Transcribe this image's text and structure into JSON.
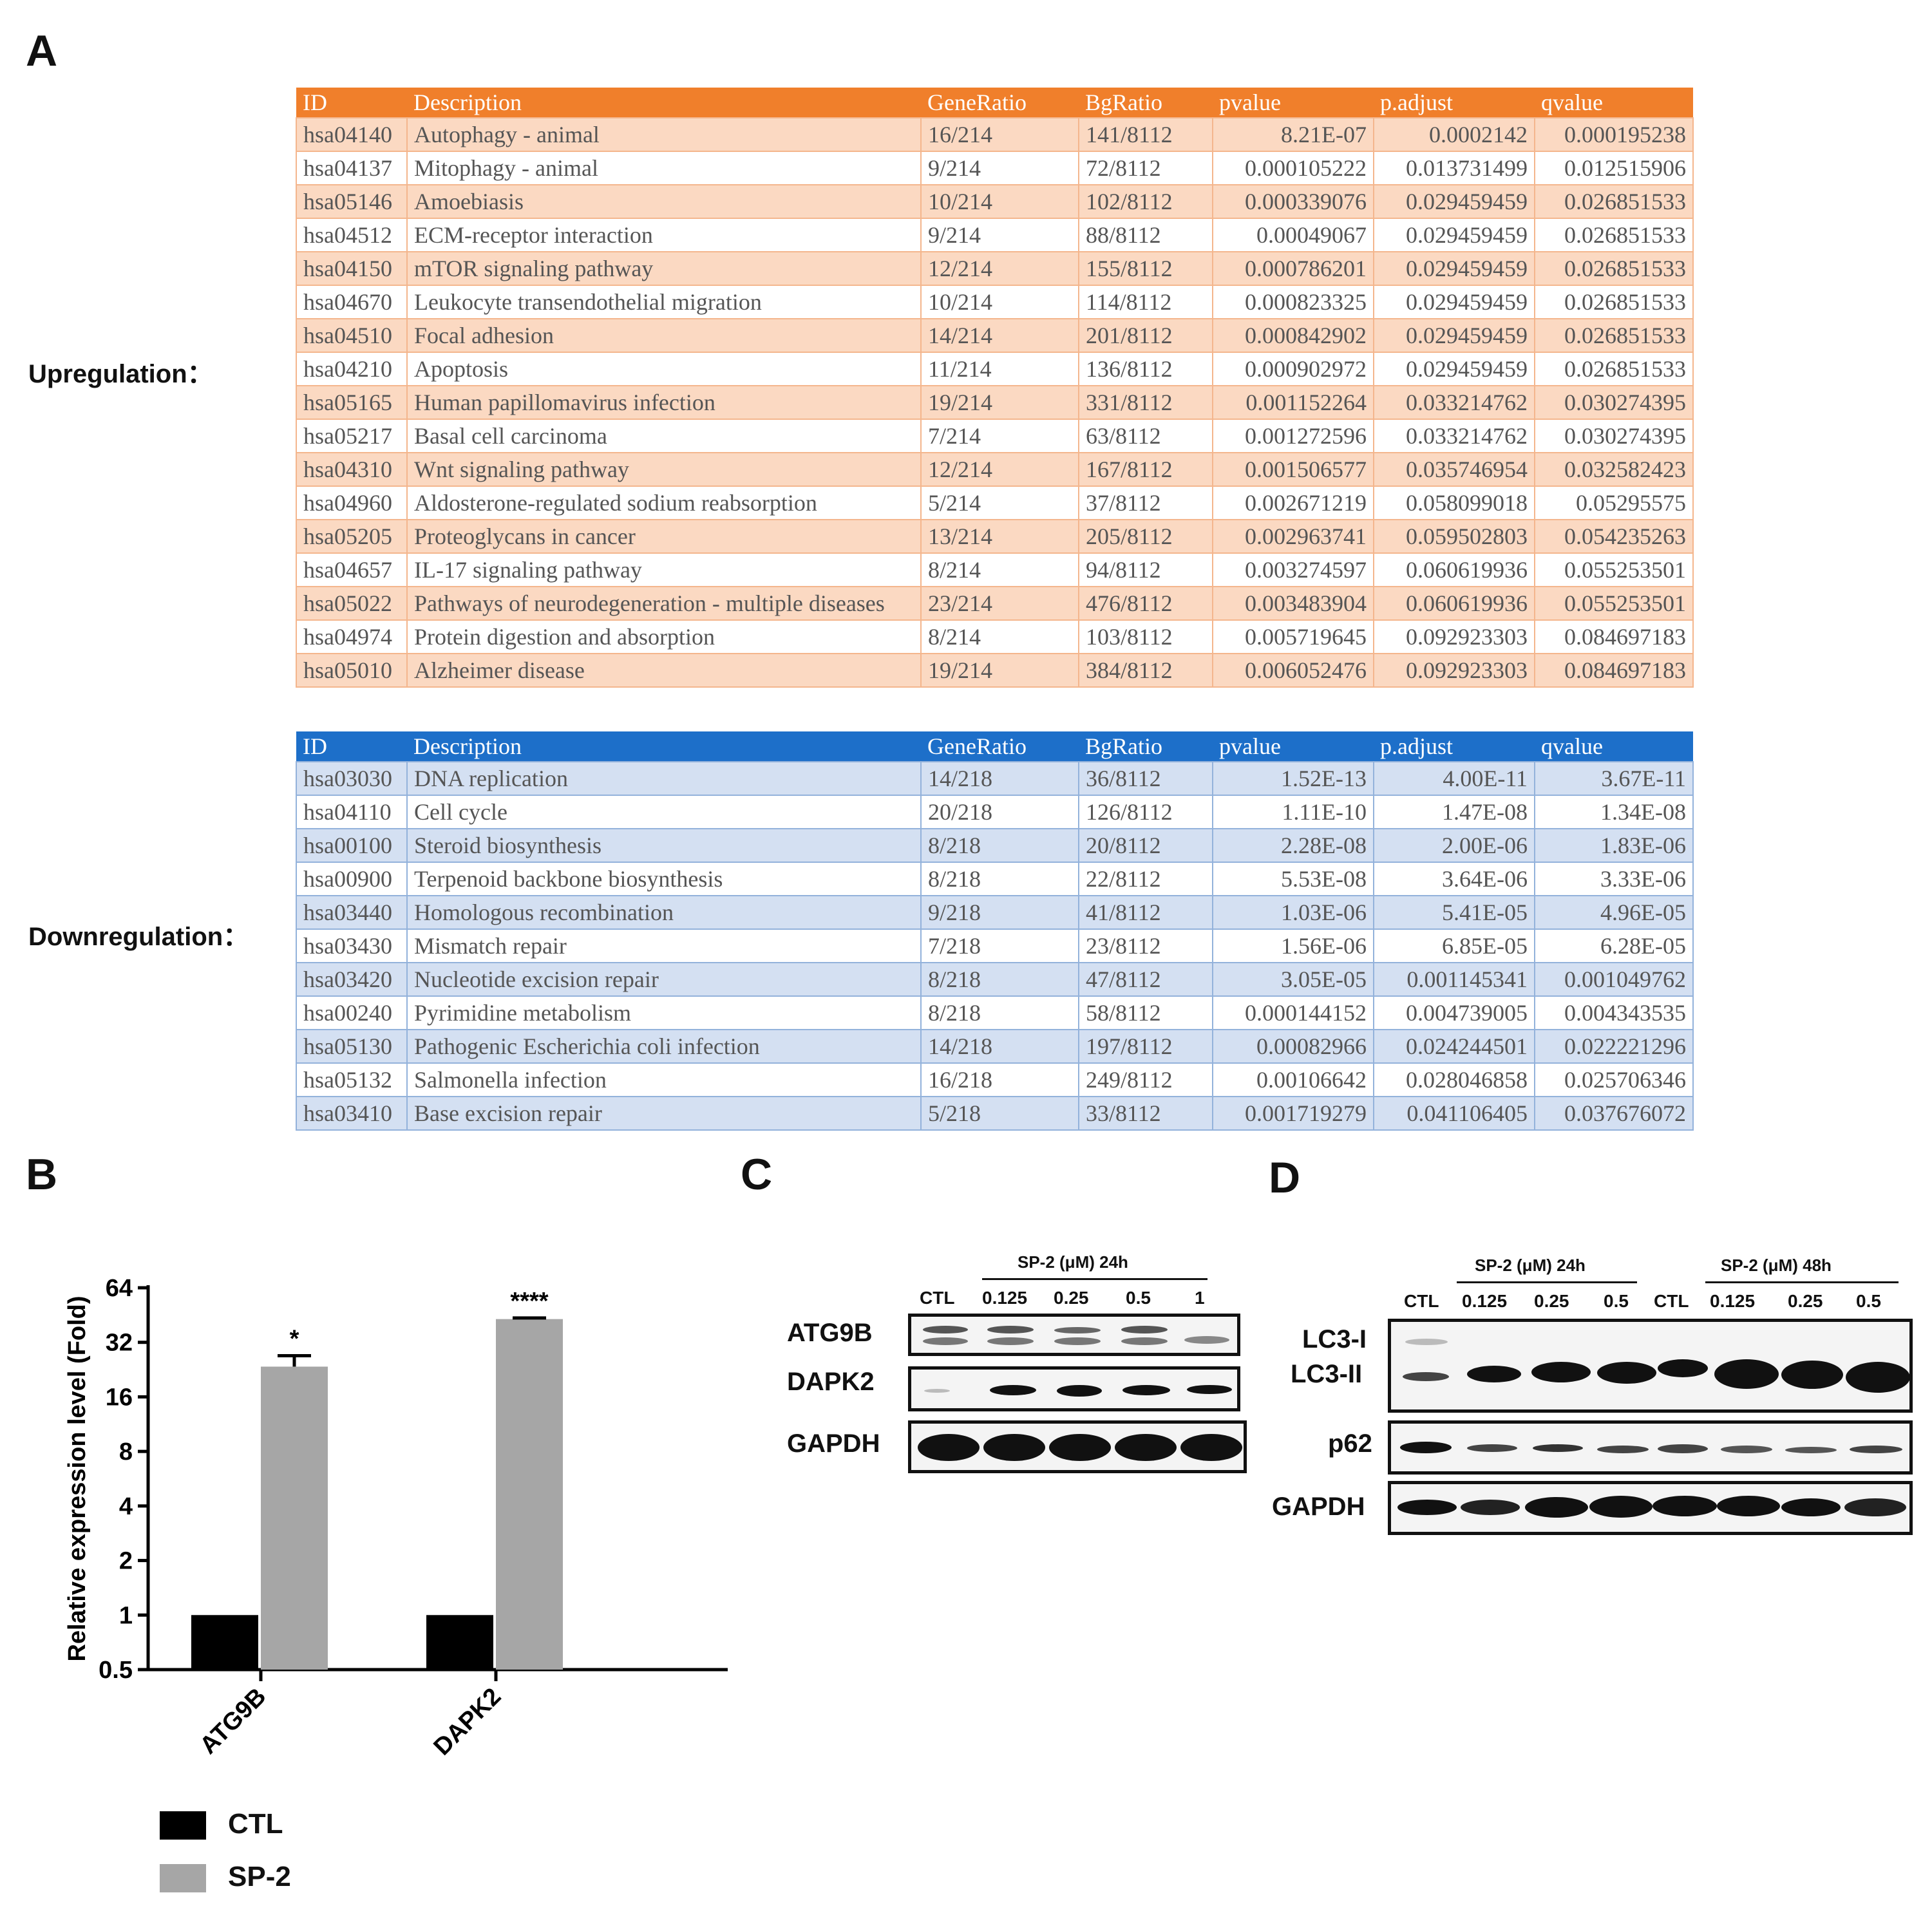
{
  "panels": {
    "a": "A",
    "b": "B",
    "c": "C",
    "d": "D"
  },
  "table_headers": [
    "ID",
    "Description",
    "GeneRatio",
    "BgRatio",
    "pvalue",
    "p.adjust",
    "qvalue"
  ],
  "upregulation": {
    "label": "Upregulation：",
    "rows": [
      [
        "hsa04140",
        "Autophagy - animal",
        "16/214",
        "141/8112",
        "8.21E-07",
        "0.0002142",
        "0.000195238"
      ],
      [
        "hsa04137",
        "Mitophagy - animal",
        "9/214",
        "72/8112",
        "0.000105222",
        "0.013731499",
        "0.012515906"
      ],
      [
        "hsa05146",
        "Amoebiasis",
        "10/214",
        "102/8112",
        "0.000339076",
        "0.029459459",
        "0.026851533"
      ],
      [
        "hsa04512",
        "ECM-receptor interaction",
        "9/214",
        "88/8112",
        "0.00049067",
        "0.029459459",
        "0.026851533"
      ],
      [
        "hsa04150",
        "mTOR signaling pathway",
        "12/214",
        "155/8112",
        "0.000786201",
        "0.029459459",
        "0.026851533"
      ],
      [
        "hsa04670",
        "Leukocyte transendothelial migration",
        "10/214",
        "114/8112",
        "0.000823325",
        "0.029459459",
        "0.026851533"
      ],
      [
        "hsa04510",
        "Focal adhesion",
        "14/214",
        "201/8112",
        "0.000842902",
        "0.029459459",
        "0.026851533"
      ],
      [
        "hsa04210",
        "Apoptosis",
        "11/214",
        "136/8112",
        "0.000902972",
        "0.029459459",
        "0.026851533"
      ],
      [
        "hsa05165",
        "Human papillomavirus infection",
        "19/214",
        "331/8112",
        "0.001152264",
        "0.033214762",
        "0.030274395"
      ],
      [
        "hsa05217",
        "Basal cell carcinoma",
        "7/214",
        "63/8112",
        "0.001272596",
        "0.033214762",
        "0.030274395"
      ],
      [
        "hsa04310",
        "Wnt signaling pathway",
        "12/214",
        "167/8112",
        "0.001506577",
        "0.035746954",
        "0.032582423"
      ],
      [
        "hsa04960",
        "Aldosterone-regulated sodium reabsorption",
        "5/214",
        "37/8112",
        "0.002671219",
        "0.058099018",
        "0.05295575"
      ],
      [
        "hsa05205",
        "Proteoglycans in cancer",
        "13/214",
        "205/8112",
        "0.002963741",
        "0.059502803",
        "0.054235263"
      ],
      [
        "hsa04657",
        "IL-17 signaling pathway",
        "8/214",
        "94/8112",
        "0.003274597",
        "0.060619936",
        "0.055253501"
      ],
      [
        "hsa05022",
        "Pathways of neurodegeneration - multiple diseases",
        "23/214",
        "476/8112",
        "0.003483904",
        "0.060619936",
        "0.055253501"
      ],
      [
        "hsa04974",
        "Protein digestion and absorption",
        "8/214",
        "103/8112",
        "0.005719645",
        "0.092923303",
        "0.084697183"
      ],
      [
        "hsa05010",
        "Alzheimer disease",
        "19/214",
        "384/8112",
        "0.006052476",
        "0.092923303",
        "0.084697183"
      ]
    ]
  },
  "downregulation": {
    "label": "Downregulation：",
    "rows": [
      [
        "hsa03030",
        "DNA replication",
        "14/218",
        "36/8112",
        "1.52E-13",
        "4.00E-11",
        "3.67E-11"
      ],
      [
        "hsa04110",
        "Cell cycle",
        "20/218",
        "126/8112",
        "1.11E-10",
        "1.47E-08",
        "1.34E-08"
      ],
      [
        "hsa00100",
        "Steroid biosynthesis",
        "8/218",
        "20/8112",
        "2.28E-08",
        "2.00E-06",
        "1.83E-06"
      ],
      [
        "hsa00900",
        "Terpenoid backbone biosynthesis",
        "8/218",
        "22/8112",
        "5.53E-08",
        "3.64E-06",
        "3.33E-06"
      ],
      [
        "hsa03440",
        "Homologous recombination",
        "9/218",
        "41/8112",
        "1.03E-06",
        "5.41E-05",
        "4.96E-05"
      ],
      [
        "hsa03430",
        "Mismatch repair",
        "7/218",
        "23/8112",
        "1.56E-06",
        "6.85E-05",
        "6.28E-05"
      ],
      [
        "hsa03420",
        "Nucleotide excision repair",
        "8/218",
        "47/8112",
        "3.05E-05",
        "0.001145341",
        "0.001049762"
      ],
      [
        "hsa00240",
        "Pyrimidine metabolism",
        "8/218",
        "58/8112",
        "0.000144152",
        "0.004739005",
        "0.004343535"
      ],
      [
        "hsa05130",
        "Pathogenic Escherichia coli infection",
        "14/218",
        "197/8112",
        "0.00082966",
        "0.024244501",
        "0.022221296"
      ],
      [
        "hsa05132",
        "Salmonella infection",
        "16/218",
        "249/8112",
        "0.00106642",
        "0.028046858",
        "0.025706346"
      ],
      [
        "hsa03410",
        "Base excision repair",
        "5/218",
        "33/8112",
        "0.001719279",
        "0.041106405",
        "0.037676072"
      ]
    ]
  },
  "chart_data": {
    "type": "bar",
    "categories": [
      "ATG9B",
      "DAPK2"
    ],
    "series": [
      {
        "name": "CTL",
        "values": [
          1,
          1
        ],
        "error": [
          0,
          0
        ]
      },
      {
        "name": "SP-2",
        "values": [
          23.5,
          43
        ],
        "error": [
          3.5,
          0.6
        ]
      }
    ],
    "significance": [
      "*",
      "****"
    ],
    "ylabel": "Relative expression level (Fold)",
    "yscale": "log2",
    "ylim": [
      0.5,
      64
    ],
    "yticks": [
      "0.5",
      "1",
      "2",
      "4",
      "8",
      "16",
      "32",
      "64"
    ],
    "colors": {
      "CTL": "#000000",
      "SP-2": "#a6a6a6"
    },
    "legend_position": "bottom-left"
  },
  "blot_c": {
    "condition": "SP-2 (μM) 24h",
    "lanes": [
      "CTL",
      "0.125",
      "0.25",
      "0.5",
      "1"
    ],
    "proteins": [
      "ATG9B",
      "DAPK2",
      "GAPDH"
    ]
  },
  "blot_d": {
    "condition_24h": "SP-2 (μM) 24h",
    "condition_48h": "SP-2 (μM) 48h",
    "lanes": [
      "CTL",
      "0.125",
      "0.25",
      "0.5",
      "CTL",
      "0.125",
      "0.25",
      "0.5"
    ],
    "proteins": [
      "LC3-I",
      "LC3-II",
      "p62",
      "GAPDH"
    ]
  }
}
